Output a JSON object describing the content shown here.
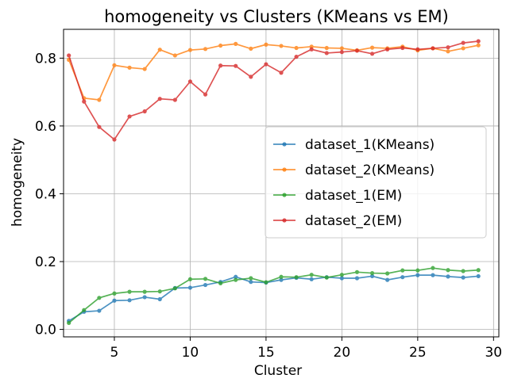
{
  "chart_data": {
    "type": "line",
    "title": "homogeneity vs Clusters (KMeans vs EM)",
    "xlabel": "Cluster",
    "ylabel": "homogeneity",
    "xlim": [
      1.65,
      30.35
    ],
    "ylim": [
      -0.022,
      0.885
    ],
    "xticks": [
      5,
      10,
      15,
      20,
      25,
      30
    ],
    "yticks": [
      0.0,
      0.2,
      0.4,
      0.6,
      0.8
    ],
    "ytick_labels": [
      "0.0",
      "0.2",
      "0.4",
      "0.6",
      "0.8"
    ],
    "grid": true,
    "legend_position": "center-right",
    "x": [
      2,
      3,
      4,
      5,
      6,
      7,
      8,
      9,
      10,
      11,
      12,
      13,
      14,
      15,
      16,
      17,
      18,
      19,
      20,
      21,
      22,
      23,
      24,
      25,
      26,
      27,
      28,
      29
    ],
    "series": [
      {
        "name": "dataset_1(KMeans)",
        "color": "#1f77b4",
        "values": [
          0.025,
          0.052,
          0.055,
          0.085,
          0.086,
          0.095,
          0.089,
          0.122,
          0.123,
          0.131,
          0.14,
          0.155,
          0.14,
          0.138,
          0.146,
          0.152,
          0.148,
          0.154,
          0.151,
          0.151,
          0.157,
          0.146,
          0.154,
          0.16,
          0.16,
          0.156,
          0.153,
          0.157
        ]
      },
      {
        "name": "dataset_2(KMeans)",
        "color": "#ff7f0e",
        "values": [
          0.795,
          0.682,
          0.677,
          0.779,
          0.772,
          0.768,
          0.825,
          0.808,
          0.824,
          0.827,
          0.837,
          0.842,
          0.828,
          0.84,
          0.836,
          0.83,
          0.834,
          0.83,
          0.829,
          0.823,
          0.831,
          0.829,
          0.834,
          0.823,
          0.829,
          0.82,
          0.829,
          0.838
        ]
      },
      {
        "name": "dataset_1(EM)",
        "color": "#2ca02c",
        "values": [
          0.019,
          0.057,
          0.093,
          0.106,
          0.111,
          0.111,
          0.112,
          0.121,
          0.148,
          0.149,
          0.136,
          0.146,
          0.151,
          0.139,
          0.155,
          0.154,
          0.161,
          0.153,
          0.161,
          0.169,
          0.166,
          0.165,
          0.174,
          0.174,
          0.181,
          0.175,
          0.172,
          0.175
        ]
      },
      {
        "name": "dataset_2(EM)",
        "color": "#d62728",
        "values": [
          0.808,
          0.672,
          0.597,
          0.56,
          0.628,
          0.643,
          0.68,
          0.677,
          0.731,
          0.693,
          0.778,
          0.777,
          0.745,
          0.782,
          0.757,
          0.804,
          0.826,
          0.815,
          0.818,
          0.822,
          0.813,
          0.826,
          0.83,
          0.826,
          0.829,
          0.832,
          0.845,
          0.85
        ]
      }
    ]
  }
}
